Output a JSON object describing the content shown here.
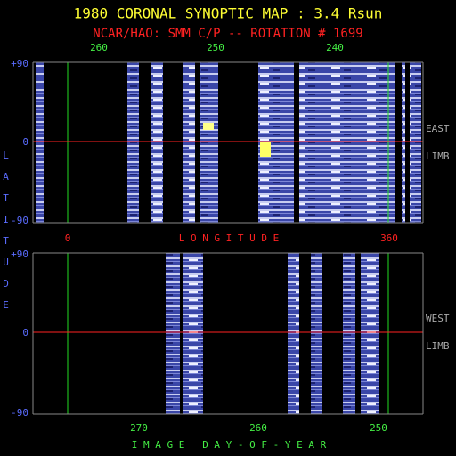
{
  "title": "1980 CORONAL SYNOPTIC MAP : 3.4 Rsun",
  "subtitle": "NCAR/HAO: SMM C/P -- ROTATION # 1699",
  "y_label": "LATITUDE",
  "top_panel": {
    "x_ticks_top": [
      "260",
      "250",
      "240"
    ],
    "y_ticks": [
      "+90",
      "0",
      "-90"
    ],
    "x_ticks_bottom": [
      "0",
      "360"
    ],
    "x_label": "L O N G I T U D E",
    "side_label": [
      "EAST",
      "LIMB"
    ]
  },
  "bottom_panel": {
    "y_ticks": [
      "+90",
      "0",
      "-90"
    ],
    "x_ticks": [
      "270",
      "260",
      "250"
    ],
    "x_label": "I M A G E   D A Y - O F - Y E A R",
    "side_label": [
      "WEST",
      "LIMB"
    ]
  }
}
